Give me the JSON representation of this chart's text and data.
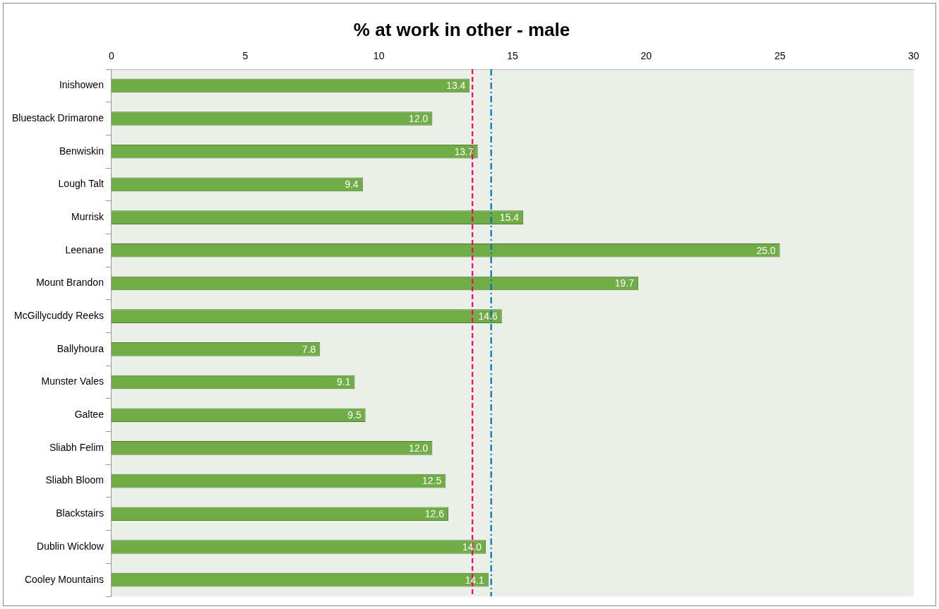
{
  "chart_data": {
    "type": "bar",
    "orientation": "horizontal",
    "title": "% at work in other - male",
    "categories": [
      "Inishowen",
      "Bluestack Drimarone",
      "Benwiskin",
      "Lough Talt",
      "Murrisk",
      "Leenane",
      "Mount Brandon",
      "McGillycuddy Reeks",
      "Ballyhoura",
      "Munster Vales",
      "Galtee",
      "Sliabh Felim",
      "Sliabh Bloom",
      "Blackstairs",
      "Dublin Wicklow",
      "Cooley Mountains"
    ],
    "values": [
      13.4,
      12.0,
      13.7,
      9.4,
      15.4,
      25.0,
      19.7,
      14.6,
      7.8,
      9.1,
      9.5,
      12.0,
      12.5,
      12.6,
      14.0,
      14.1
    ],
    "color": "#70ad47",
    "xlim": [
      0,
      30
    ],
    "xticks": [
      0,
      5,
      10,
      15,
      20,
      25,
      30
    ],
    "value_labels": [
      "13.4",
      "12.0",
      "13.7",
      "9.4",
      "15.4",
      "25.0",
      "19.7",
      "14.6",
      "7.8",
      "9.1",
      "9.5",
      "12.0",
      "12.5",
      "12.6",
      "14.0",
      "14.1"
    ],
    "grid": false,
    "legend": false,
    "ref_lines": [
      {
        "axis": "x",
        "value": 13.5,
        "color": "#ff0066",
        "line_style": "dashed"
      },
      {
        "axis": "x",
        "value": 14.2,
        "color": "#0070c0",
        "line_style": "dashdot"
      }
    ]
  }
}
